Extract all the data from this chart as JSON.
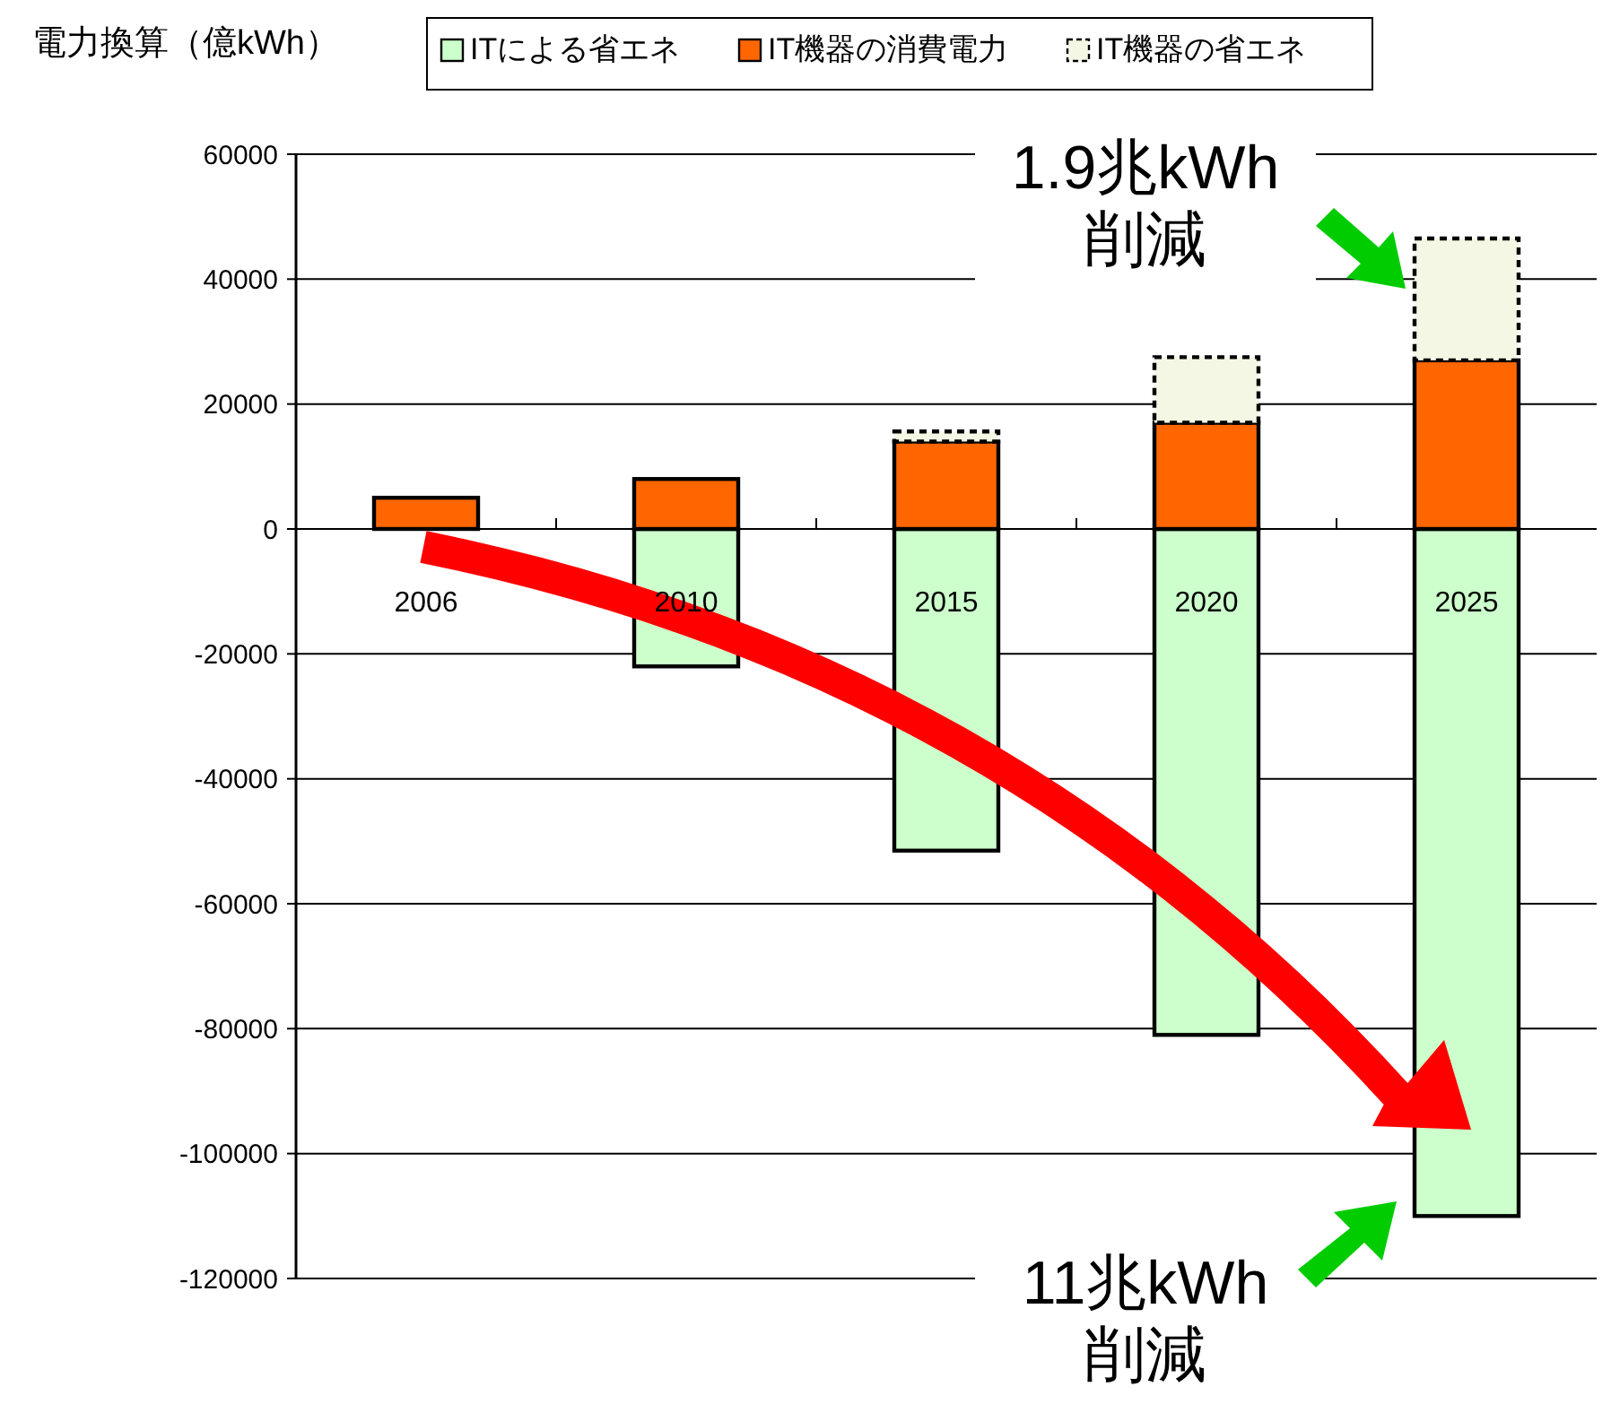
{
  "chart_data": {
    "type": "bar",
    "ylabel": "電力換算（億kWh）",
    "categories": [
      "2006",
      "2010",
      "2015",
      "2020",
      "2025"
    ],
    "stacked": true,
    "series": [
      {
        "name": "ITによる省エネ",
        "color": "#ccffcc",
        "values": [
          0,
          -22000,
          -51500,
          -81000,
          -110000
        ]
      },
      {
        "name": "IT機器の消費電力",
        "color": "#ff6600",
        "values": [
          5000,
          8000,
          14000,
          17000,
          27000
        ]
      },
      {
        "name": "IT機器の省エネ",
        "color": "#f4f7e4",
        "values": [
          0,
          0,
          1600,
          10500,
          19500
        ],
        "line_style": "dashed"
      }
    ],
    "ylim": [
      -120000,
      60000
    ],
    "yticks": [
      -120000,
      -100000,
      -80000,
      -60000,
      -40000,
      -20000,
      0,
      20000,
      40000,
      60000
    ],
    "grid": "y",
    "legend": "top",
    "annotations": [
      "1.9兆kWh\n削減",
      "11兆kWh\n削減"
    ]
  }
}
